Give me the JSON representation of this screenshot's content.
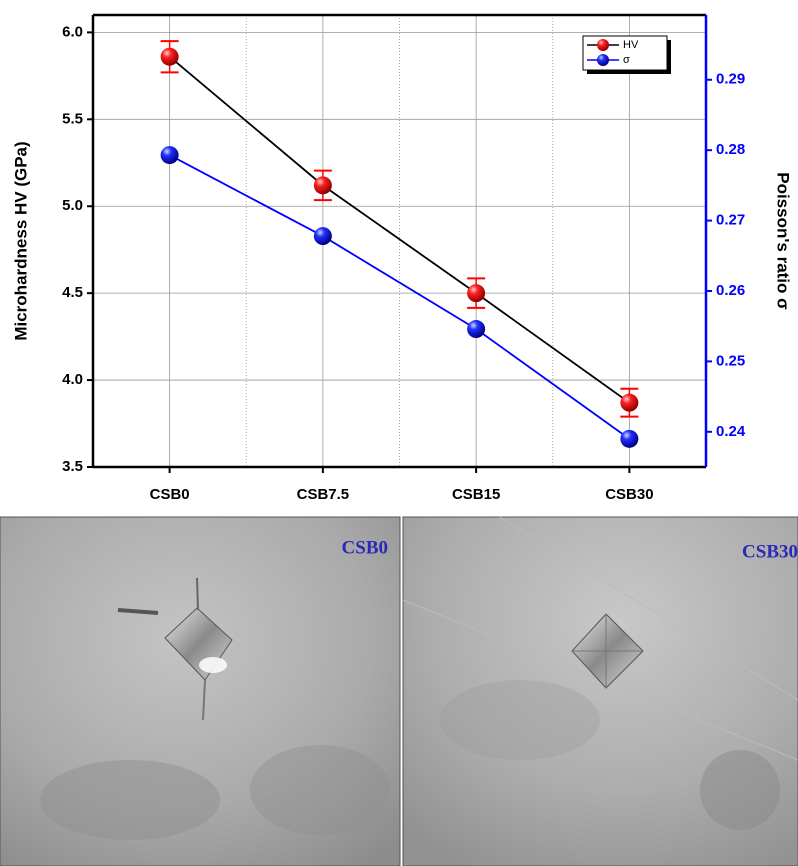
{
  "chart_data": {
    "type": "line",
    "categories": [
      "CSB0",
      "CSB7.5",
      "CSB15",
      "CSB30"
    ],
    "y_label": "Microhardness HV (GPa)",
    "y2_label": "Poisson's ratio σ",
    "ylim": [
      3.5,
      6.1
    ],
    "yticks": [
      3.5,
      {
        "value": 4,
        "label": "4.0"
      },
      4.5,
      {
        "value": 5,
        "label": "5.0"
      },
      5.5,
      {
        "value": 6,
        "label": "6.0"
      }
    ],
    "y2lim": [
      0.235,
      0.2992
    ],
    "y2ticks": [
      0.24,
      0.25,
      0.26,
      0.27,
      0.28,
      0.29
    ],
    "grid": true,
    "legend": "top-right",
    "series": [
      {
        "name": "HV",
        "color": "#ff0000",
        "line_color": "#000000",
        "values": [
          5.86,
          5.12,
          4.5,
          3.87
        ],
        "errors": [
          0.09,
          0.085,
          0.085,
          0.08
        ]
      },
      {
        "name": "σ",
        "color": "#0000ff",
        "line_color": "#0000ff",
        "axis": "y2",
        "values": [
          0.2793,
          0.2678,
          0.2546,
          0.239
        ]
      }
    ]
  },
  "micrographs": [
    {
      "label": "CSB0"
    },
    {
      "label": "CSB30"
    }
  ]
}
